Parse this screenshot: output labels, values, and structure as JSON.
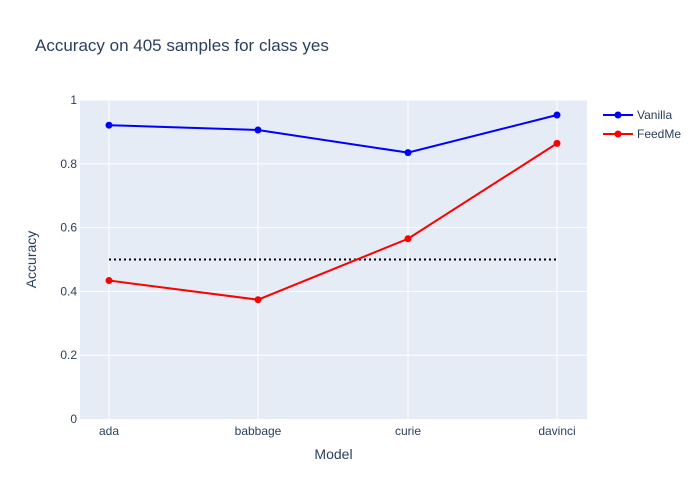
{
  "chart_data": {
    "type": "line",
    "title": "Accuracy on 405 samples for class  yes",
    "xlabel": "Model",
    "ylabel": "Accuracy",
    "categories": [
      "ada",
      "babbage",
      "curie",
      "davinci"
    ],
    "ylim": [
      0,
      1
    ],
    "yticks": [
      0,
      0.2,
      0.4,
      0.6,
      0.8,
      1
    ],
    "ytick_labels": [
      "0",
      "0.2",
      "0.4",
      "0.6",
      "0.8",
      "1"
    ],
    "grid": true,
    "legend_position": "top-right",
    "series": [
      {
        "name": "Vanilla",
        "color": "#0000ff",
        "values": [
          0.921,
          0.906,
          0.835,
          0.953
        ]
      },
      {
        "name": "FeedMe",
        "color": "#ff0000",
        "values": [
          0.434,
          0.374,
          0.565,
          0.864
        ]
      }
    ],
    "reference_line": {
      "y": 0.5,
      "color": "#000000",
      "style": "dotted"
    }
  },
  "colors": {
    "plot_background": "#e5ecf6",
    "gridline": "#ffffff",
    "text": "#2a3f5f"
  }
}
